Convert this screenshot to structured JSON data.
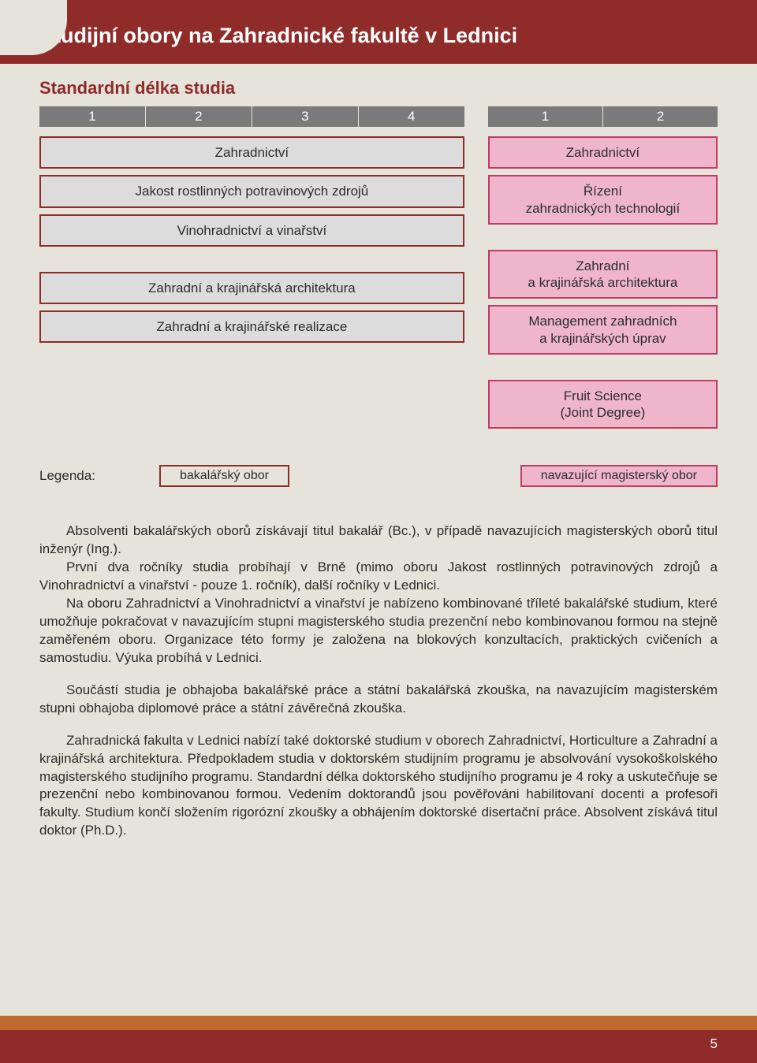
{
  "colors": {
    "page_bg": "#e6e3da",
    "header_bg": "#8f2c2a",
    "header_text": "#ffffff",
    "subtitle": "#8f2c2a",
    "yearbar_bg": "#7a7a7a",
    "yearbar_text": "#ffffff",
    "bach_bg": "#dcdcdc",
    "bach_border": "#8f2c2a",
    "mag_bg": "#efb6cb",
    "mag_border": "#c33b64",
    "body_text": "#2c2c2c",
    "footer_top": "#c06a31",
    "footer_bot": "#8f2c2a"
  },
  "header": {
    "title": "Studijní obory na Zahradnické fakultě v Lednici"
  },
  "subtitle": "Standardní délka studia",
  "yearbar_left": [
    "1",
    "2",
    "3",
    "4"
  ],
  "yearbar_right": [
    "1",
    "2"
  ],
  "left_group1": {
    "b1": "Zahradnictví",
    "b2": "Jakost rostlinných potravinových zdrojů",
    "b3": "Vinohradnictví a vinařství"
  },
  "left_group2": {
    "b1": "Zahradní a krajinářská architektura",
    "b2": "Zahradní a krajinářské realizace"
  },
  "right_group1": {
    "m1": "Zahradnictví",
    "m2_l1": "Řízení",
    "m2_l2": "zahradnických technologií"
  },
  "right_group2": {
    "m1_l1": "Zahradní",
    "m1_l2": "a krajinářská architektura",
    "m2_l1": "Management zahradních",
    "m2_l2": "a krajinářských úprav"
  },
  "right_group3": {
    "m1_l1": "Fruit Science",
    "m1_l2": "(Joint Degree)"
  },
  "legend": {
    "label": "Legenda:",
    "bach": "bakalářský obor",
    "mag": "navazující magisterský obor"
  },
  "paragraphs": {
    "p1a": "Absolventi bakalářských oborů získávají titul bakalář (Bc.), v případě navazujících magisterských oborů titul inženýr (Ing.).",
    "p1b": "První dva ročníky studia probíhají v Brně (mimo oboru Jakost rostlinných potravinových zdrojů a Vinohradnictví a vinařství - pouze 1. ročník), další ročníky v Lednici.",
    "p1c": "Na oboru Zahradnictví a Vinohradnictví a vinařství je nabízeno kombinované tříleté bakalářské studium, které umožňuje pokračovat v navazujícím stupni magisterského studia prezenční nebo kombinovanou formou na stejně zaměřeném oboru. Organizace této formy je založena na blokových konzultacích, praktických cvičeních a samostudiu. Výuka probíhá v Lednici.",
    "p2": "Součástí studia je obhajoba bakalářské práce a státní bakalářská zkouška, na navazujícím magisterském stupni obhajoba diplomové práce a státní závěrečná zkouška.",
    "p3": "Zahradnická fakulta v Lednici nabízí také doktorské studium v oborech Zahradnictví, Horticulture a Zahradní a krajinářská architektura. Předpokladem studia v doktorském studijním programu je absolvování vysokoškolského magisterského studijního programu. Standardní délka doktorského studijního programu je 4 roky a uskutečňuje se prezenční nebo kombinovanou formou. Vedením doktorandů jsou pověřováni habilitovaní docenti a profesoři fakulty. Studium končí složením rigorózní zkoušky a obhájením doktorské disertační práce. Absolvent získává titul doktor (Ph.D.)."
  },
  "page_number": "5"
}
